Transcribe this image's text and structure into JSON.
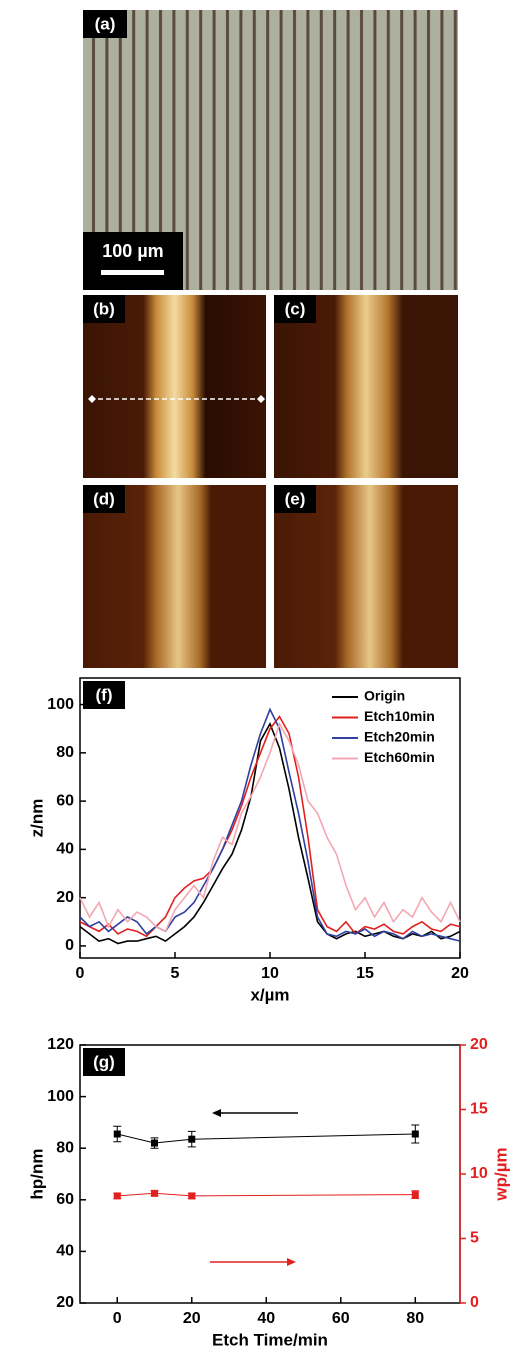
{
  "panels": {
    "a": "(a)",
    "b": "(b)",
    "c": "(c)",
    "d": "(d)",
    "e": "(e)"
  },
  "scale_bar": "100 µm",
  "chart_data": [
    {
      "type": "line",
      "annotation": "(f)",
      "xlabel": "x/µm",
      "ylabel": "z/nm",
      "xlim": [
        0,
        20
      ],
      "ylim": [
        -5,
        111
      ],
      "xticks": [
        0,
        5,
        10,
        15,
        20
      ],
      "yticks": [
        0,
        20,
        40,
        60,
        80,
        100
      ],
      "legend": "upper right",
      "x": [
        0,
        0.5,
        1,
        1.5,
        2,
        2.5,
        3,
        3.5,
        4,
        4.5,
        5,
        5.5,
        6,
        6.5,
        7,
        7.5,
        8,
        8.5,
        9,
        9.5,
        10,
        10.5,
        11,
        11.5,
        12,
        12.5,
        13,
        13.5,
        14,
        14.5,
        15,
        15.5,
        16,
        16.5,
        17,
        17.5,
        18,
        18.5,
        19,
        19.5,
        20
      ],
      "series": [
        {
          "name": "Origin",
          "color": "#000000",
          "values": [
            8,
            5,
            2,
            3,
            1,
            2,
            2,
            3,
            4,
            2,
            5,
            8,
            12,
            18,
            25,
            32,
            38,
            48,
            62,
            85,
            92,
            82,
            65,
            45,
            28,
            10,
            5,
            3,
            5,
            6,
            4,
            5,
            6,
            4,
            3,
            5,
            4,
            6,
            3,
            4,
            6
          ]
        },
        {
          "name": "Etch10min",
          "color": "#e32020",
          "values": [
            10,
            8,
            6,
            9,
            5,
            7,
            6,
            4,
            8,
            12,
            20,
            24,
            27,
            28,
            32,
            40,
            48,
            58,
            70,
            80,
            90,
            95,
            88,
            70,
            45,
            15,
            8,
            6,
            10,
            5,
            8,
            7,
            9,
            6,
            5,
            8,
            10,
            7,
            6,
            9,
            8
          ]
        },
        {
          "name": "Etch20min",
          "color": "#3040a0",
          "values": [
            12,
            8,
            10,
            6,
            9,
            12,
            10,
            5,
            8,
            6,
            12,
            14,
            18,
            25,
            32,
            40,
            50,
            60,
            75,
            88,
            98,
            90,
            72,
            55,
            35,
            12,
            5,
            4,
            6,
            5,
            7,
            4,
            6,
            5,
            3,
            6,
            4,
            5,
            4,
            3,
            2
          ]
        },
        {
          "name": "Etch60min",
          "color": "#f4a7b3",
          "values": [
            20,
            12,
            18,
            8,
            15,
            10,
            14,
            12,
            8,
            6,
            15,
            20,
            25,
            20,
            35,
            45,
            42,
            55,
            62,
            70,
            80,
            92,
            85,
            75,
            60,
            55,
            45,
            38,
            25,
            15,
            20,
            12,
            18,
            10,
            15,
            12,
            20,
            14,
            10,
            18,
            10
          ]
        }
      ]
    },
    {
      "type": "line",
      "annotation": "(g)",
      "xlabel": "Etch Time/min",
      "ylabel": "hp/nm",
      "y2label": "wp/µm",
      "xlim": [
        -10,
        92
      ],
      "ylim": [
        20,
        120
      ],
      "y2lim": [
        0,
        20
      ],
      "xticks": [
        0,
        20,
        40,
        60,
        80
      ],
      "yticks": [
        20,
        40,
        60,
        80,
        100,
        120
      ],
      "y2ticks": [
        0,
        5,
        10,
        15,
        20
      ],
      "y2color": "#e32020",
      "x": [
        0,
        10,
        20,
        80
      ],
      "series": [
        {
          "color": "#000000",
          "values": [
            85.5,
            82,
            83.5,
            85.5
          ],
          "errors": [
            3,
            2,
            3,
            3.5
          ]
        },
        {
          "color": "#e32020",
          "axis": "y2",
          "values": [
            8.3,
            8.5,
            8.3,
            8.4
          ],
          "errors": [
            0.2,
            0.2,
            0.2,
            0.3
          ]
        }
      ]
    }
  ]
}
